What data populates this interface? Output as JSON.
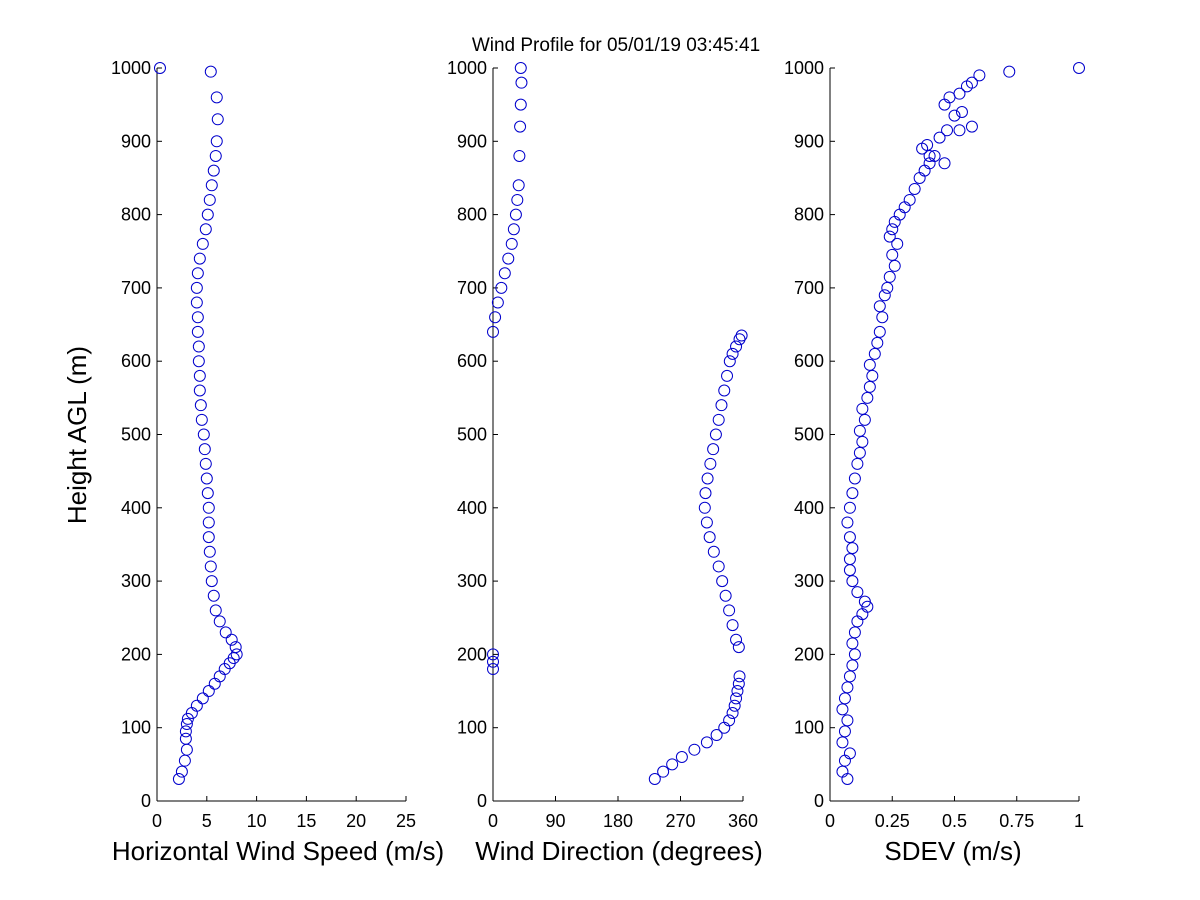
{
  "title": "Wind Profile for  05/01/19 03:45:41",
  "marker_color": "#0000cc",
  "chart_data": [
    {
      "type": "scatter",
      "xlabel": "Horizontal Wind Speed (m/s)",
      "ylabel": "Height AGL (m)",
      "xlim": [
        0,
        25
      ],
      "ylim": [
        0,
        1000
      ],
      "xticks": [
        "0",
        "5",
        "10",
        "15",
        "20",
        "25"
      ],
      "yticks": [
        "0",
        "100",
        "200",
        "300",
        "400",
        "500",
        "600",
        "700",
        "800",
        "900",
        "1000"
      ],
      "series": [
        {
          "x": [
            2.2,
            2.5,
            2.8,
            3.0,
            2.9,
            2.9,
            3.0,
            3.1,
            3.5,
            4.0,
            4.6,
            5.2,
            5.8,
            6.3,
            6.8,
            7.3,
            7.7,
            8.0,
            7.9,
            7.5,
            6.9,
            6.3,
            5.9,
            5.7,
            5.5,
            5.4,
            5.3,
            5.2,
            5.2,
            5.2,
            5.1,
            5.0,
            4.9,
            4.8,
            4.7,
            4.5,
            4.4,
            4.3,
            4.3,
            4.2,
            4.2,
            4.1,
            4.1,
            4.0,
            4.0,
            4.1,
            4.3,
            4.6,
            4.9,
            5.1,
            5.3,
            5.5,
            5.7,
            5.9,
            6.0,
            6.1,
            6.0,
            5.4,
            0.3
          ],
          "y": [
            30,
            40,
            55,
            70,
            85,
            95,
            105,
            112,
            120,
            130,
            140,
            150,
            160,
            170,
            180,
            188,
            195,
            200,
            210,
            220,
            230,
            245,
            260,
            280,
            300,
            320,
            340,
            360,
            380,
            400,
            420,
            440,
            460,
            480,
            500,
            520,
            540,
            560,
            580,
            600,
            620,
            640,
            660,
            680,
            700,
            720,
            740,
            760,
            780,
            800,
            820,
            840,
            860,
            880,
            900,
            930,
            960,
            995,
            1000
          ]
        }
      ]
    },
    {
      "type": "scatter",
      "xlabel": "Wind Direction (degrees)",
      "ylabel": "",
      "xlim": [
        0,
        360
      ],
      "ylim": [
        0,
        1000
      ],
      "xticks": [
        "0",
        "90",
        "180",
        "270",
        "360"
      ],
      "yticks": [
        "0",
        "100",
        "200",
        "300",
        "400",
        "500",
        "600",
        "700",
        "800",
        "900",
        "1000"
      ],
      "series": [
        {
          "x": [
            233,
            245,
            258,
            272,
            290,
            308,
            322,
            333,
            340,
            345,
            348,
            350,
            352,
            354,
            355,
            0,
            0,
            0,
            354,
            350,
            345,
            340,
            335,
            330,
            325,
            318,
            312,
            308,
            305,
            306,
            309,
            313,
            317,
            321,
            325,
            329,
            333,
            337,
            341,
            345,
            350,
            355,
            358,
            0,
            3,
            7,
            12,
            17,
            22,
            27,
            30,
            33,
            35,
            37,
            38,
            39,
            40,
            41,
            40
          ],
          "y": [
            30,
            40,
            50,
            60,
            70,
            80,
            90,
            100,
            110,
            120,
            130,
            140,
            150,
            160,
            170,
            180,
            190,
            200,
            210,
            220,
            240,
            260,
            280,
            300,
            320,
            340,
            360,
            380,
            400,
            420,
            440,
            460,
            480,
            500,
            520,
            540,
            560,
            580,
            600,
            610,
            620,
            630,
            635,
            640,
            660,
            680,
            700,
            720,
            740,
            760,
            780,
            800,
            820,
            840,
            880,
            920,
            950,
            980,
            1000
          ]
        }
      ]
    },
    {
      "type": "scatter",
      "xlabel": "SDEV  (m/s)",
      "ylabel": "",
      "xlim": [
        0,
        1
      ],
      "ylim": [
        0,
        1000
      ],
      "xticks": [
        "0",
        "0.25",
        "0.5",
        "0.75",
        "1"
      ],
      "yticks": [
        "0",
        "100",
        "200",
        "300",
        "400",
        "500",
        "600",
        "700",
        "800",
        "900",
        "1000"
      ],
      "series": [
        {
          "x": [
            0.07,
            0.05,
            0.06,
            0.08,
            0.05,
            0.06,
            0.07,
            0.05,
            0.06,
            0.07,
            0.08,
            0.09,
            0.1,
            0.09,
            0.1,
            0.11,
            0.13,
            0.15,
            0.14,
            0.11,
            0.09,
            0.08,
            0.08,
            0.09,
            0.08,
            0.07,
            0.08,
            0.09,
            0.1,
            0.11,
            0.12,
            0.13,
            0.12,
            0.14,
            0.13,
            0.15,
            0.16,
            0.17,
            0.16,
            0.18,
            0.19,
            0.2,
            0.21,
            0.2,
            0.22,
            0.23,
            0.24,
            0.26,
            0.25,
            0.27,
            0.24,
            0.25,
            0.26,
            0.28,
            0.3,
            0.32,
            0.34,
            0.36,
            0.38,
            0.4,
            0.42,
            0.46,
            0.4,
            0.37,
            0.39,
            0.44,
            0.47,
            0.52,
            0.57,
            0.5,
            0.53,
            0.46,
            0.48,
            0.52,
            0.55,
            0.57,
            0.6,
            0.72,
            1.0
          ],
          "y": [
            30,
            40,
            55,
            65,
            80,
            95,
            110,
            125,
            140,
            155,
            170,
            185,
            200,
            215,
            230,
            245,
            255,
            265,
            272,
            285,
            300,
            315,
            330,
            345,
            360,
            380,
            400,
            420,
            440,
            460,
            475,
            490,
            505,
            520,
            535,
            550,
            565,
            580,
            595,
            610,
            625,
            640,
            660,
            675,
            690,
            700,
            715,
            730,
            745,
            760,
            770,
            780,
            790,
            800,
            810,
            820,
            835,
            850,
            860,
            870,
            880,
            870,
            880,
            890,
            895,
            905,
            915,
            915,
            920,
            935,
            940,
            950,
            960,
            965,
            975,
            980,
            990,
            995,
            1000
          ]
        }
      ]
    }
  ]
}
